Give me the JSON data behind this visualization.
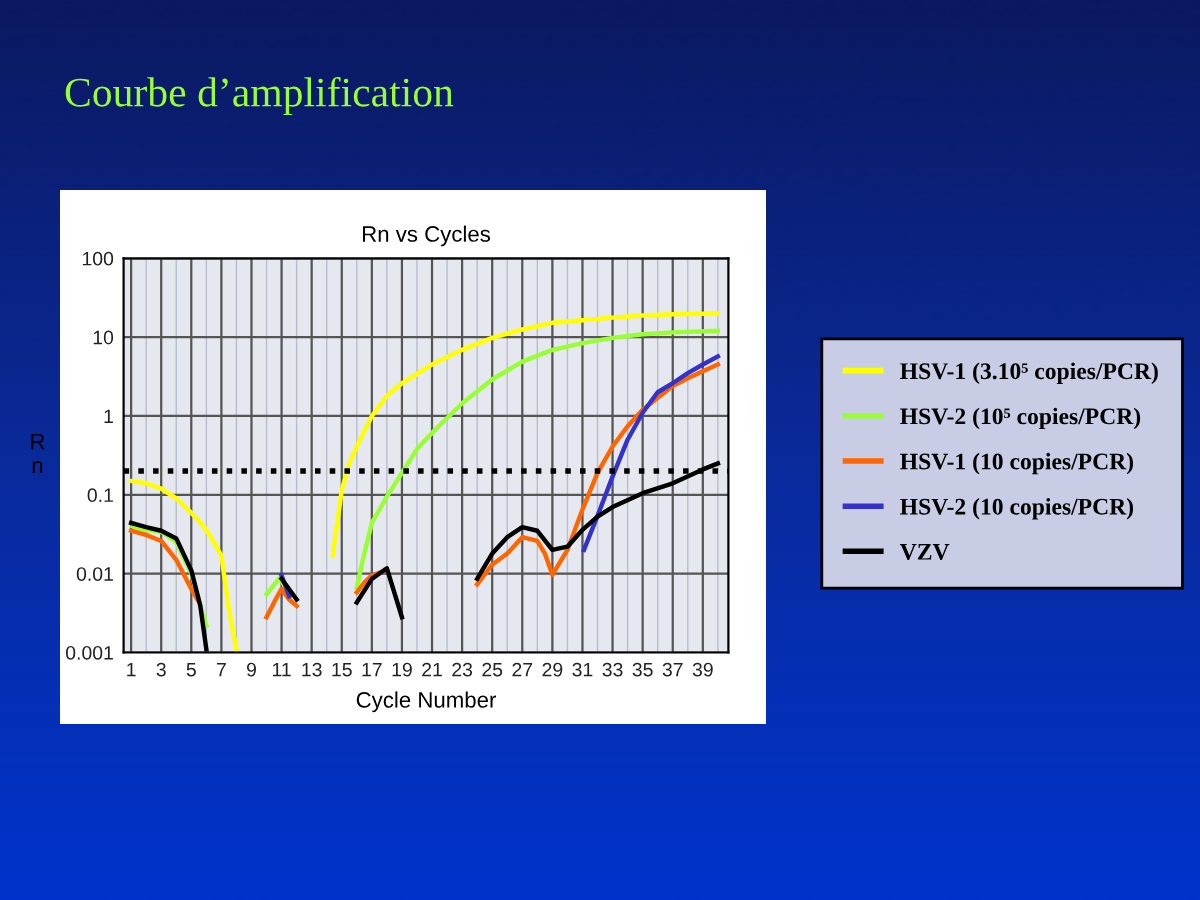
{
  "chart_data": {
    "type": "line",
    "title": "Rn vs Cycles",
    "xlabel": "Cycle Number",
    "ylabel": "Rn",
    "annotations": [
      "Courbe d’amplification"
    ],
    "log": "y",
    "xlim": [
      0.5,
      40.7
    ],
    "xticks": [
      1,
      3,
      5,
      7,
      9,
      11,
      13,
      15,
      17,
      19,
      21,
      23,
      25,
      27,
      29,
      31,
      33,
      35,
      37,
      39
    ],
    "ylim": [
      0.001,
      100
    ],
    "yticks": [
      0.001,
      0.01,
      0.1,
      1,
      10,
      100
    ],
    "grid": true,
    "legend": "right",
    "line_style": "solid",
    "marker": "none",
    "ref_lines": [
      {
        "axis": "y",
        "value": 0.2,
        "color": "#000000",
        "line_style": "dotted"
      }
    ],
    "series": [
      {
        "name": "HSV-1 (3.10⁵ copies/PCR)",
        "color": "#ffff00",
        "x": [
          1,
          2,
          3,
          4,
          5,
          6,
          6.5,
          7,
          7.5,
          8,
          null,
          14.4,
          15,
          15.5,
          16,
          17,
          18,
          19,
          21,
          23,
          25,
          27,
          29,
          31,
          33,
          35,
          37,
          40
        ],
        "values": [
          0.15,
          0.14,
          0.12,
          0.09,
          0.059,
          0.036,
          0.025,
          0.017,
          0.0035,
          0.0011,
          null,
          0.017,
          0.115,
          0.25,
          0.41,
          1.0,
          1.8,
          2.6,
          4.5,
          6.9,
          9.8,
          12.5,
          15.2,
          16.4,
          17.7,
          18.8,
          19.5,
          19.9
        ]
      },
      {
        "name": "HSV-2 (10⁵ copies/PCR)",
        "color": "#99ff33",
        "x": [
          1.1,
          2,
          3,
          4,
          5,
          5.8,
          6,
          null,
          10,
          10.9,
          11.5,
          null,
          16,
          16.4,
          17,
          18,
          19,
          20,
          21,
          23,
          25,
          27,
          29,
          31,
          33,
          35,
          37,
          40
        ],
        "values": [
          0.04,
          0.036,
          0.034,
          0.025,
          0.01,
          0.0029,
          0.0022,
          null,
          0.0055,
          0.009,
          0.0052,
          null,
          0.0066,
          0.015,
          0.044,
          0.095,
          0.19,
          0.38,
          0.61,
          1.45,
          2.9,
          4.9,
          6.9,
          8.4,
          9.8,
          10.9,
          11.5,
          12
        ]
      },
      {
        "name": "HSV-1 (10 copies/PCR)",
        "color": "#ff6600",
        "x": [
          1,
          2,
          3,
          4,
          5,
          5.4,
          null,
          10,
          10.6,
          11,
          11.5,
          12,
          null,
          16,
          16.5,
          17,
          18,
          null,
          24,
          25,
          26,
          27,
          28,
          28.5,
          29,
          30,
          31,
          32,
          33,
          34,
          35,
          36,
          37,
          38,
          39,
          40
        ],
        "values": [
          0.035,
          0.031,
          0.026,
          0.015,
          0.0064,
          0.0047,
          null,
          0.0028,
          0.0047,
          0.0064,
          0.0047,
          0.0039,
          null,
          0.0058,
          0.0077,
          0.0095,
          0.011,
          null,
          0.0073,
          0.013,
          0.018,
          0.029,
          0.026,
          0.018,
          0.0097,
          0.02,
          0.065,
          0.19,
          0.41,
          0.74,
          1.2,
          1.7,
          2.4,
          3.0,
          3.7,
          4.5
        ]
      },
      {
        "name": "HSV-2 (10 copies/PCR)",
        "color": "#3333cc",
        "x": [
          11,
          11.5,
          null,
          31.1,
          32,
          33,
          34,
          35,
          36,
          37,
          38,
          39,
          40
        ],
        "values": [
          0.0095,
          0.0052,
          null,
          0.02,
          0.054,
          0.17,
          0.5,
          1.1,
          2.0,
          2.6,
          3.5,
          4.5,
          5.7
        ]
      },
      {
        "name": "VZV",
        "color": "#000000",
        "x": [
          1,
          2,
          3,
          4,
          5,
          5.6,
          6,
          null,
          11,
          12,
          null,
          16,
          17,
          18,
          19,
          null,
          24,
          25,
          26,
          27,
          28,
          29,
          30,
          31,
          32,
          33,
          35,
          37,
          39,
          40
        ],
        "values": [
          0.044,
          0.039,
          0.035,
          0.028,
          0.011,
          0.0039,
          0.0011,
          null,
          0.0086,
          0.0047,
          null,
          0.0043,
          0.0086,
          0.0117,
          0.0028,
          null,
          0.0086,
          0.018,
          0.029,
          0.039,
          0.035,
          0.02,
          0.022,
          0.036,
          0.053,
          0.07,
          0.105,
          0.14,
          0.21,
          0.25
        ]
      }
    ]
  }
}
